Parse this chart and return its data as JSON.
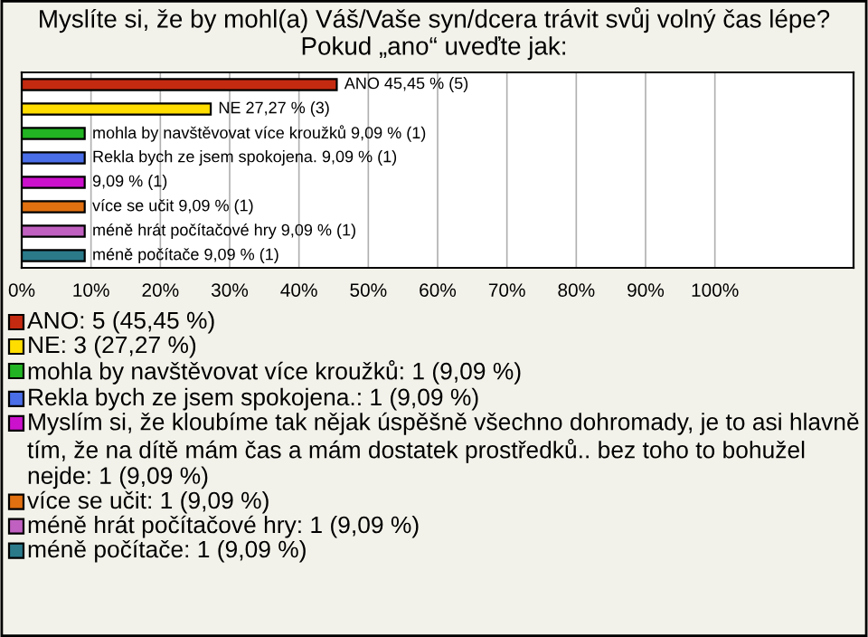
{
  "chart_data": {
    "type": "bar",
    "orientation": "horizontal",
    "title": "Myslíte si, že by mohl(a) Váš/Vaše syn/dcera trávit svůj volný čas lépe? Pokud „ano“ uveďte jak:",
    "categories": [
      null,
      null,
      null,
      null,
      null,
      null,
      null,
      null
    ],
    "series": [
      {
        "name": "ANO: 5 (45,45 %)",
        "color": "#c42a10",
        "values": [
          45.45,
          null,
          null,
          null,
          null,
          null,
          null,
          null
        ],
        "value_labels": [
          "ANO 45,45 % (5)",
          null,
          null,
          null,
          null,
          null,
          null,
          null
        ]
      },
      {
        "name": "NE: 3 (27,27 %)",
        "color": "#ffdd00",
        "values": [
          null,
          27.27,
          null,
          null,
          null,
          null,
          null,
          null
        ],
        "value_labels": [
          null,
          "NE 27,27 % (3)",
          null,
          null,
          null,
          null,
          null,
          null
        ]
      },
      {
        "name": "mohla by navštěvovat více kroužků: 1 (9,09 %)",
        "color": "#22b422",
        "values": [
          null,
          null,
          9.09,
          null,
          null,
          null,
          null,
          null
        ],
        "value_labels": [
          null,
          null,
          "mohla by navštěvovat více kroužků 9,09 % (1)",
          null,
          null,
          null,
          null,
          null
        ]
      },
      {
        "name": "Rekla bych ze jsem spokojena.: 1 (9,09 %)",
        "color": "#4a6ee8",
        "values": [
          null,
          null,
          null,
          9.09,
          null,
          null,
          null,
          null
        ],
        "value_labels": [
          null,
          null,
          null,
          "Rekla bych ze jsem spokojena. 9,09 % (1)",
          null,
          null,
          null,
          null
        ]
      },
      {
        "name": "Myslím si, že kloubíme tak nějak úspěšně všechno dohromady, je to asi hlavně tím, že na dítě mám čas a mám dostatek prostředků.. bez toho to bohužel nejde: 1 (9,09 %)",
        "color": "#cc11cc",
        "values": [
          null,
          null,
          null,
          null,
          9.09,
          null,
          null,
          null
        ],
        "value_labels": [
          null,
          null,
          null,
          null,
          "9,09 % (1)",
          null,
          null,
          null
        ]
      },
      {
        "name": "více se učit: 1 (9,09 %)",
        "color": "#e07010",
        "values": [
          null,
          null,
          null,
          null,
          null,
          9.09,
          null,
          null
        ],
        "value_labels": [
          null,
          null,
          null,
          null,
          null,
          "více se učit 9,09 % (1)",
          null,
          null
        ]
      },
      {
        "name": "méně hrát počítačové hry: 1 (9,09 %)",
        "color": "#c060c0",
        "values": [
          null,
          null,
          null,
          null,
          null,
          null,
          9.09,
          null
        ],
        "value_labels": [
          null,
          null,
          null,
          null,
          null,
          null,
          "méně hrát počítačové hry 9,09 % (1)",
          null
        ]
      },
      {
        "name": "méně počítače: 1 (9,09 %)",
        "color": "#2a7a8a",
        "values": [
          null,
          null,
          null,
          null,
          null,
          null,
          null,
          9.09
        ],
        "value_labels": [
          null,
          null,
          null,
          null,
          null,
          null,
          null,
          "méně počítače 9,09 % (1)"
        ]
      }
    ],
    "xlim": [
      0,
      120
    ],
    "xticks": [
      {
        "value": 0,
        "label": "0%"
      },
      {
        "value": 10,
        "label": "10%"
      },
      {
        "value": 20,
        "label": "20%"
      },
      {
        "value": 30,
        "label": "30%"
      },
      {
        "value": 40,
        "label": "40%"
      },
      {
        "value": 50,
        "label": "50%"
      },
      {
        "value": 60,
        "label": "60%"
      },
      {
        "value": 70,
        "label": "70%"
      },
      {
        "value": 80,
        "label": "80%"
      },
      {
        "value": 90,
        "label": "90%"
      },
      {
        "value": 100,
        "label": "100%"
      }
    ],
    "grid": "x",
    "legend": "bottom"
  }
}
